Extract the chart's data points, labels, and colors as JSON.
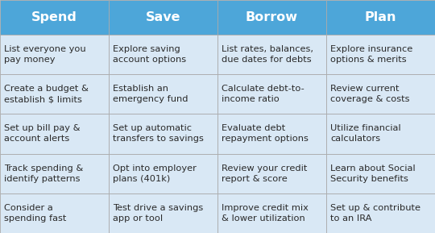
{
  "headers": [
    "Spend",
    "Save",
    "Borrow",
    "Plan"
  ],
  "rows": [
    [
      "List everyone you\npay money",
      "Explore saving\naccount options",
      "List rates, balances,\ndue dates for debts",
      "Explore insurance\noptions & merits"
    ],
    [
      "Create a budget &\nestablish $ limits",
      "Establish an\nemergency fund",
      "Calculate debt-to-\nincome ratio",
      "Review current\ncoverage & costs"
    ],
    [
      "Set up bill pay &\naccount alerts",
      "Set up automatic\ntransfers to savings",
      "Evaluate debt\nrepayment options",
      "Utilize financial\ncalculators"
    ],
    [
      "Track spending &\nidentify patterns",
      "Opt into employer\nplans (401k)",
      "Review your credit\nreport & score",
      "Learn about Social\nSecurity benefits"
    ],
    [
      "Consider a\nspending fast",
      "Test drive a savings\napp or tool",
      "Improve credit mix\n& lower utilization",
      "Set up & contribute\nto an IRA"
    ]
  ],
  "header_bg_color": "#4da6d9",
  "header_text_color": "#ffffff",
  "row_bg_color": "#d9e8f5",
  "cell_text_color": "#2a2a2a",
  "border_color": "#aaaaaa",
  "header_fontsize": 11.5,
  "cell_fontsize": 8.2,
  "fig_width": 5.4,
  "fig_height": 2.89,
  "dpi": 100
}
